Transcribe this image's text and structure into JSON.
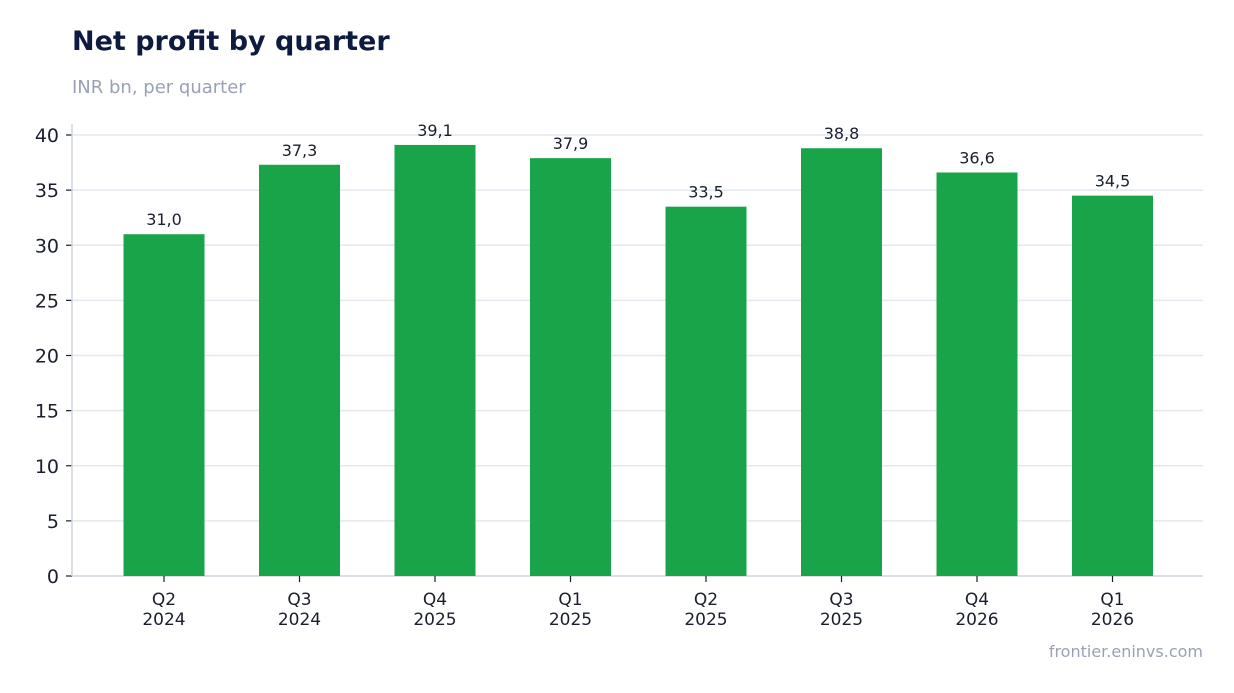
{
  "header": {
    "title": "Net profit by quarter",
    "subtitle": "INR bn, per quarter"
  },
  "footer": {
    "source": "frontier.eninvs.com"
  },
  "colors": {
    "bar": "#1aa44a",
    "grid": "#e3e8ef",
    "axis": "#cfd6df",
    "text": "#1a1f2e",
    "label": "#1a1f2e"
  },
  "chart_data": {
    "type": "bar",
    "title": "Net profit by quarter",
    "subtitle": "INR bn, per quarter",
    "categories": [
      "Q2 2024",
      "Q3 2024",
      "Q4 2025",
      "Q1 2025",
      "Q2 2025",
      "Q3 2025",
      "Q4 2026",
      "Q1 2026"
    ],
    "category_lines": [
      [
        "Q2",
        "2024"
      ],
      [
        "Q3",
        "2024"
      ],
      [
        "Q4",
        "2025"
      ],
      [
        "Q1",
        "2025"
      ],
      [
        "Q2",
        "2025"
      ],
      [
        "Q3",
        "2025"
      ],
      [
        "Q4",
        "2026"
      ],
      [
        "Q1",
        "2026"
      ]
    ],
    "values": [
      31.0,
      37.3,
      39.1,
      37.9,
      33.5,
      38.8,
      36.6,
      34.5
    ],
    "value_labels": [
      "31,0",
      "37,3",
      "39,1",
      "37,9",
      "33,5",
      "38,8",
      "36,6",
      "34,5"
    ],
    "ylim": [
      0,
      40
    ],
    "yticks": [
      0,
      5,
      10,
      15,
      20,
      25,
      30,
      35,
      40
    ],
    "grid": true,
    "legend": "none",
    "xlabel": "",
    "ylabel": ""
  }
}
